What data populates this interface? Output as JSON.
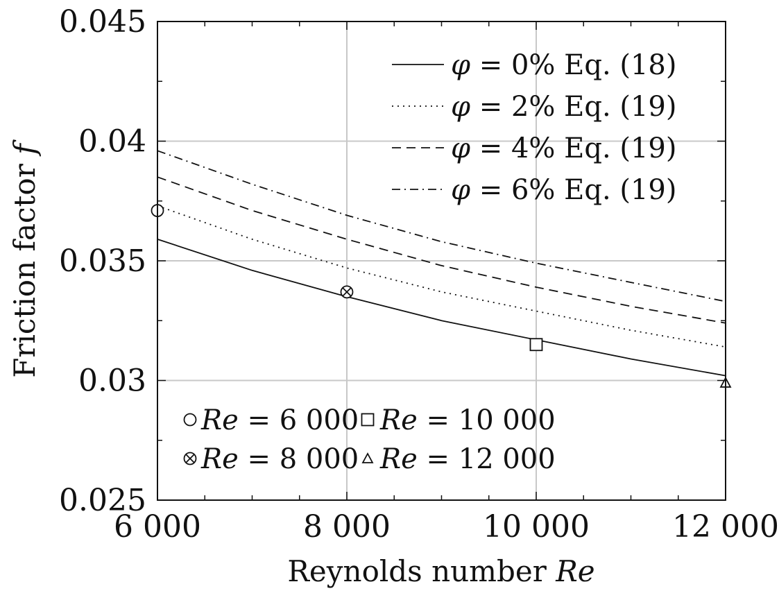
{
  "chart_data": {
    "type": "line",
    "xlabel": "Reynolds number",
    "xlabel_var": "Re",
    "ylabel": "Friction factor",
    "ylabel_var": "f",
    "xlim": [
      6000,
      12000
    ],
    "ylim": [
      0.025,
      0.045
    ],
    "x_ticks": [
      6000,
      8000,
      10000,
      12000
    ],
    "x_tick_labels": [
      "6 000",
      "8 000",
      "10 000",
      "12 000"
    ],
    "y_ticks": [
      0.025,
      0.03,
      0.035,
      0.04,
      0.045
    ],
    "y_tick_labels": [
      "0.025",
      "0.03",
      "0.035",
      "0.04",
      "0.045"
    ],
    "grid": true,
    "legend_position": "top-right",
    "series": [
      {
        "var": "φ",
        "value_text": " = 0% Eq. (18)",
        "style": "solid",
        "x": [
          6000,
          7000,
          8000,
          9000,
          10000,
          11000,
          12000
        ],
        "y": [
          0.0359,
          0.0346,
          0.0335,
          0.0325,
          0.0317,
          0.0309,
          0.0302
        ]
      },
      {
        "var": "φ",
        "value_text": " = 2% Eq. (19)",
        "style": "dotted",
        "x": [
          6000,
          7000,
          8000,
          9000,
          10000,
          11000,
          12000
        ],
        "y": [
          0.0373,
          0.0359,
          0.0347,
          0.0337,
          0.0329,
          0.0321,
          0.0314
        ]
      },
      {
        "var": "φ",
        "value_text": " = 4% Eq. (19)",
        "style": "dashed",
        "x": [
          6000,
          7000,
          8000,
          9000,
          10000,
          11000,
          12000
        ],
        "y": [
          0.0385,
          0.0371,
          0.0359,
          0.0348,
          0.0339,
          0.0331,
          0.0324
        ]
      },
      {
        "var": "φ",
        "value_text": " = 6% Eq. (19)",
        "style": "dashdot",
        "x": [
          6000,
          7000,
          8000,
          9000,
          10000,
          11000,
          12000
        ],
        "y": [
          0.0396,
          0.0382,
          0.0369,
          0.0358,
          0.0349,
          0.0341,
          0.0333
        ]
      }
    ],
    "markers": [
      {
        "shape": "circle",
        "x": 6000,
        "y": 0.0371,
        "var": "Re",
        "label_text": " = 6 000"
      },
      {
        "shape": "otimes",
        "x": 8000,
        "y": 0.0337,
        "var": "Re",
        "label_text": " = 8 000"
      },
      {
        "shape": "square",
        "x": 10000,
        "y": 0.0315,
        "var": "Re",
        "label_text": " = 10 000"
      },
      {
        "shape": "triangle",
        "x": 12000,
        "y": 0.0299,
        "var": "Re",
        "label_text": " = 12 000"
      }
    ]
  }
}
